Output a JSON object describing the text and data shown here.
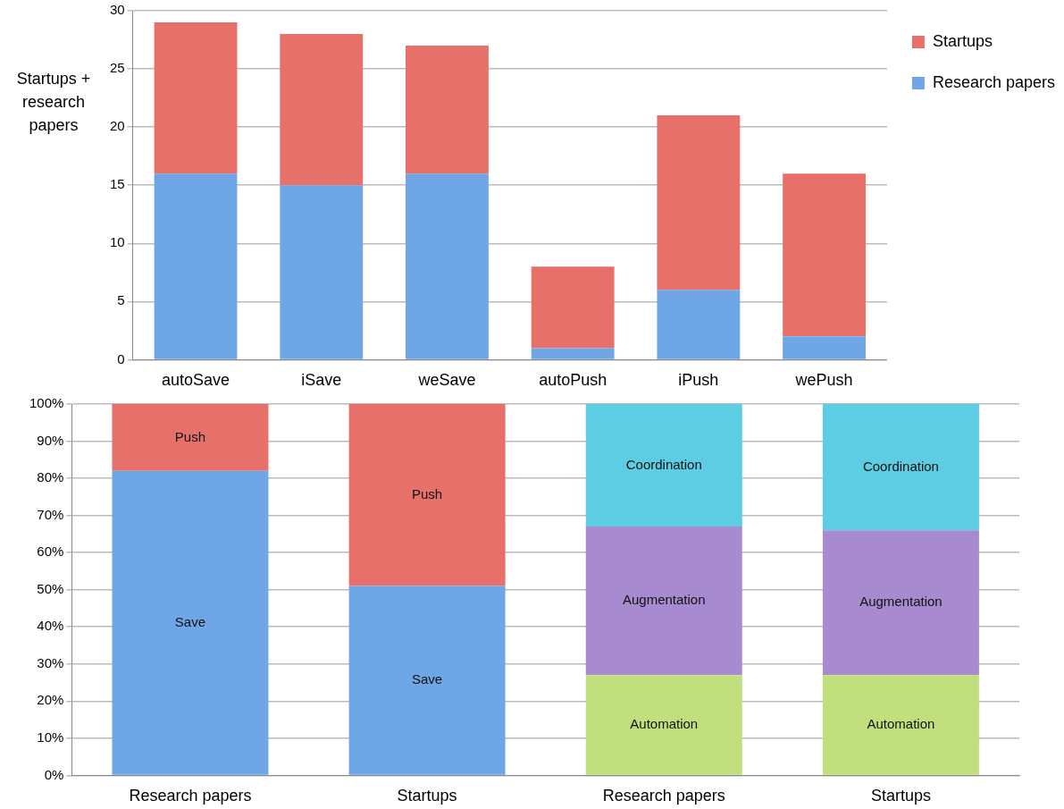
{
  "chart_data": [
    {
      "type": "bar",
      "stacked": true,
      "ylabel": "Startups + research papers",
      "categories": [
        "autoSave",
        "iSave",
        "weSave",
        "autoPush",
        "iPush",
        "wePush"
      ],
      "series": [
        {
          "name": "Research papers",
          "color": "#6fa6e6",
          "values": [
            16,
            15,
            16,
            1,
            6,
            2
          ]
        },
        {
          "name": "Startups",
          "color": "#e8706a",
          "values": [
            13,
            13,
            11,
            7,
            15,
            14
          ]
        }
      ],
      "ylim": [
        0,
        30
      ],
      "yticks": [
        0,
        5,
        10,
        15,
        20,
        25,
        30
      ],
      "grid": "y",
      "legend": "top right"
    },
    {
      "type": "bar",
      "stacked": true,
      "categories": [
        "Research papers",
        "Startups",
        "Research papers",
        "Startups"
      ],
      "series": [
        {
          "name": "Save",
          "color": "#6fa6e6",
          "values": [
            82,
            51,
            null,
            null
          ]
        },
        {
          "name": "Push",
          "color": "#e8706a",
          "values": [
            18,
            49,
            null,
            null
          ]
        },
        {
          "name": "Automation",
          "color": "#c2df7e",
          "values": [
            null,
            null,
            27,
            27
          ]
        },
        {
          "name": "Augmentation",
          "color": "#a88ad0",
          "values": [
            null,
            null,
            40,
            39
          ]
        },
        {
          "name": "Coordination",
          "color": "#5ccde2",
          "values": [
            null,
            null,
            33,
            34
          ]
        }
      ],
      "ylim": [
        0,
        100
      ],
      "yticks": [
        {
          "value": 0,
          "label": "0%"
        },
        {
          "value": 10,
          "label": "10%"
        },
        {
          "value": 20,
          "label": "20%"
        },
        {
          "value": 30,
          "label": "30%"
        },
        {
          "value": 40,
          "label": "40%"
        },
        {
          "value": 50,
          "label": "50%"
        },
        {
          "value": 60,
          "label": "60%"
        },
        {
          "value": 70,
          "label": "70%"
        },
        {
          "value": 80,
          "label": "80%"
        },
        {
          "value": 90,
          "label": "90%"
        },
        {
          "value": 100,
          "label": "100%"
        }
      ],
      "grid": "y",
      "legend": false
    }
  ]
}
